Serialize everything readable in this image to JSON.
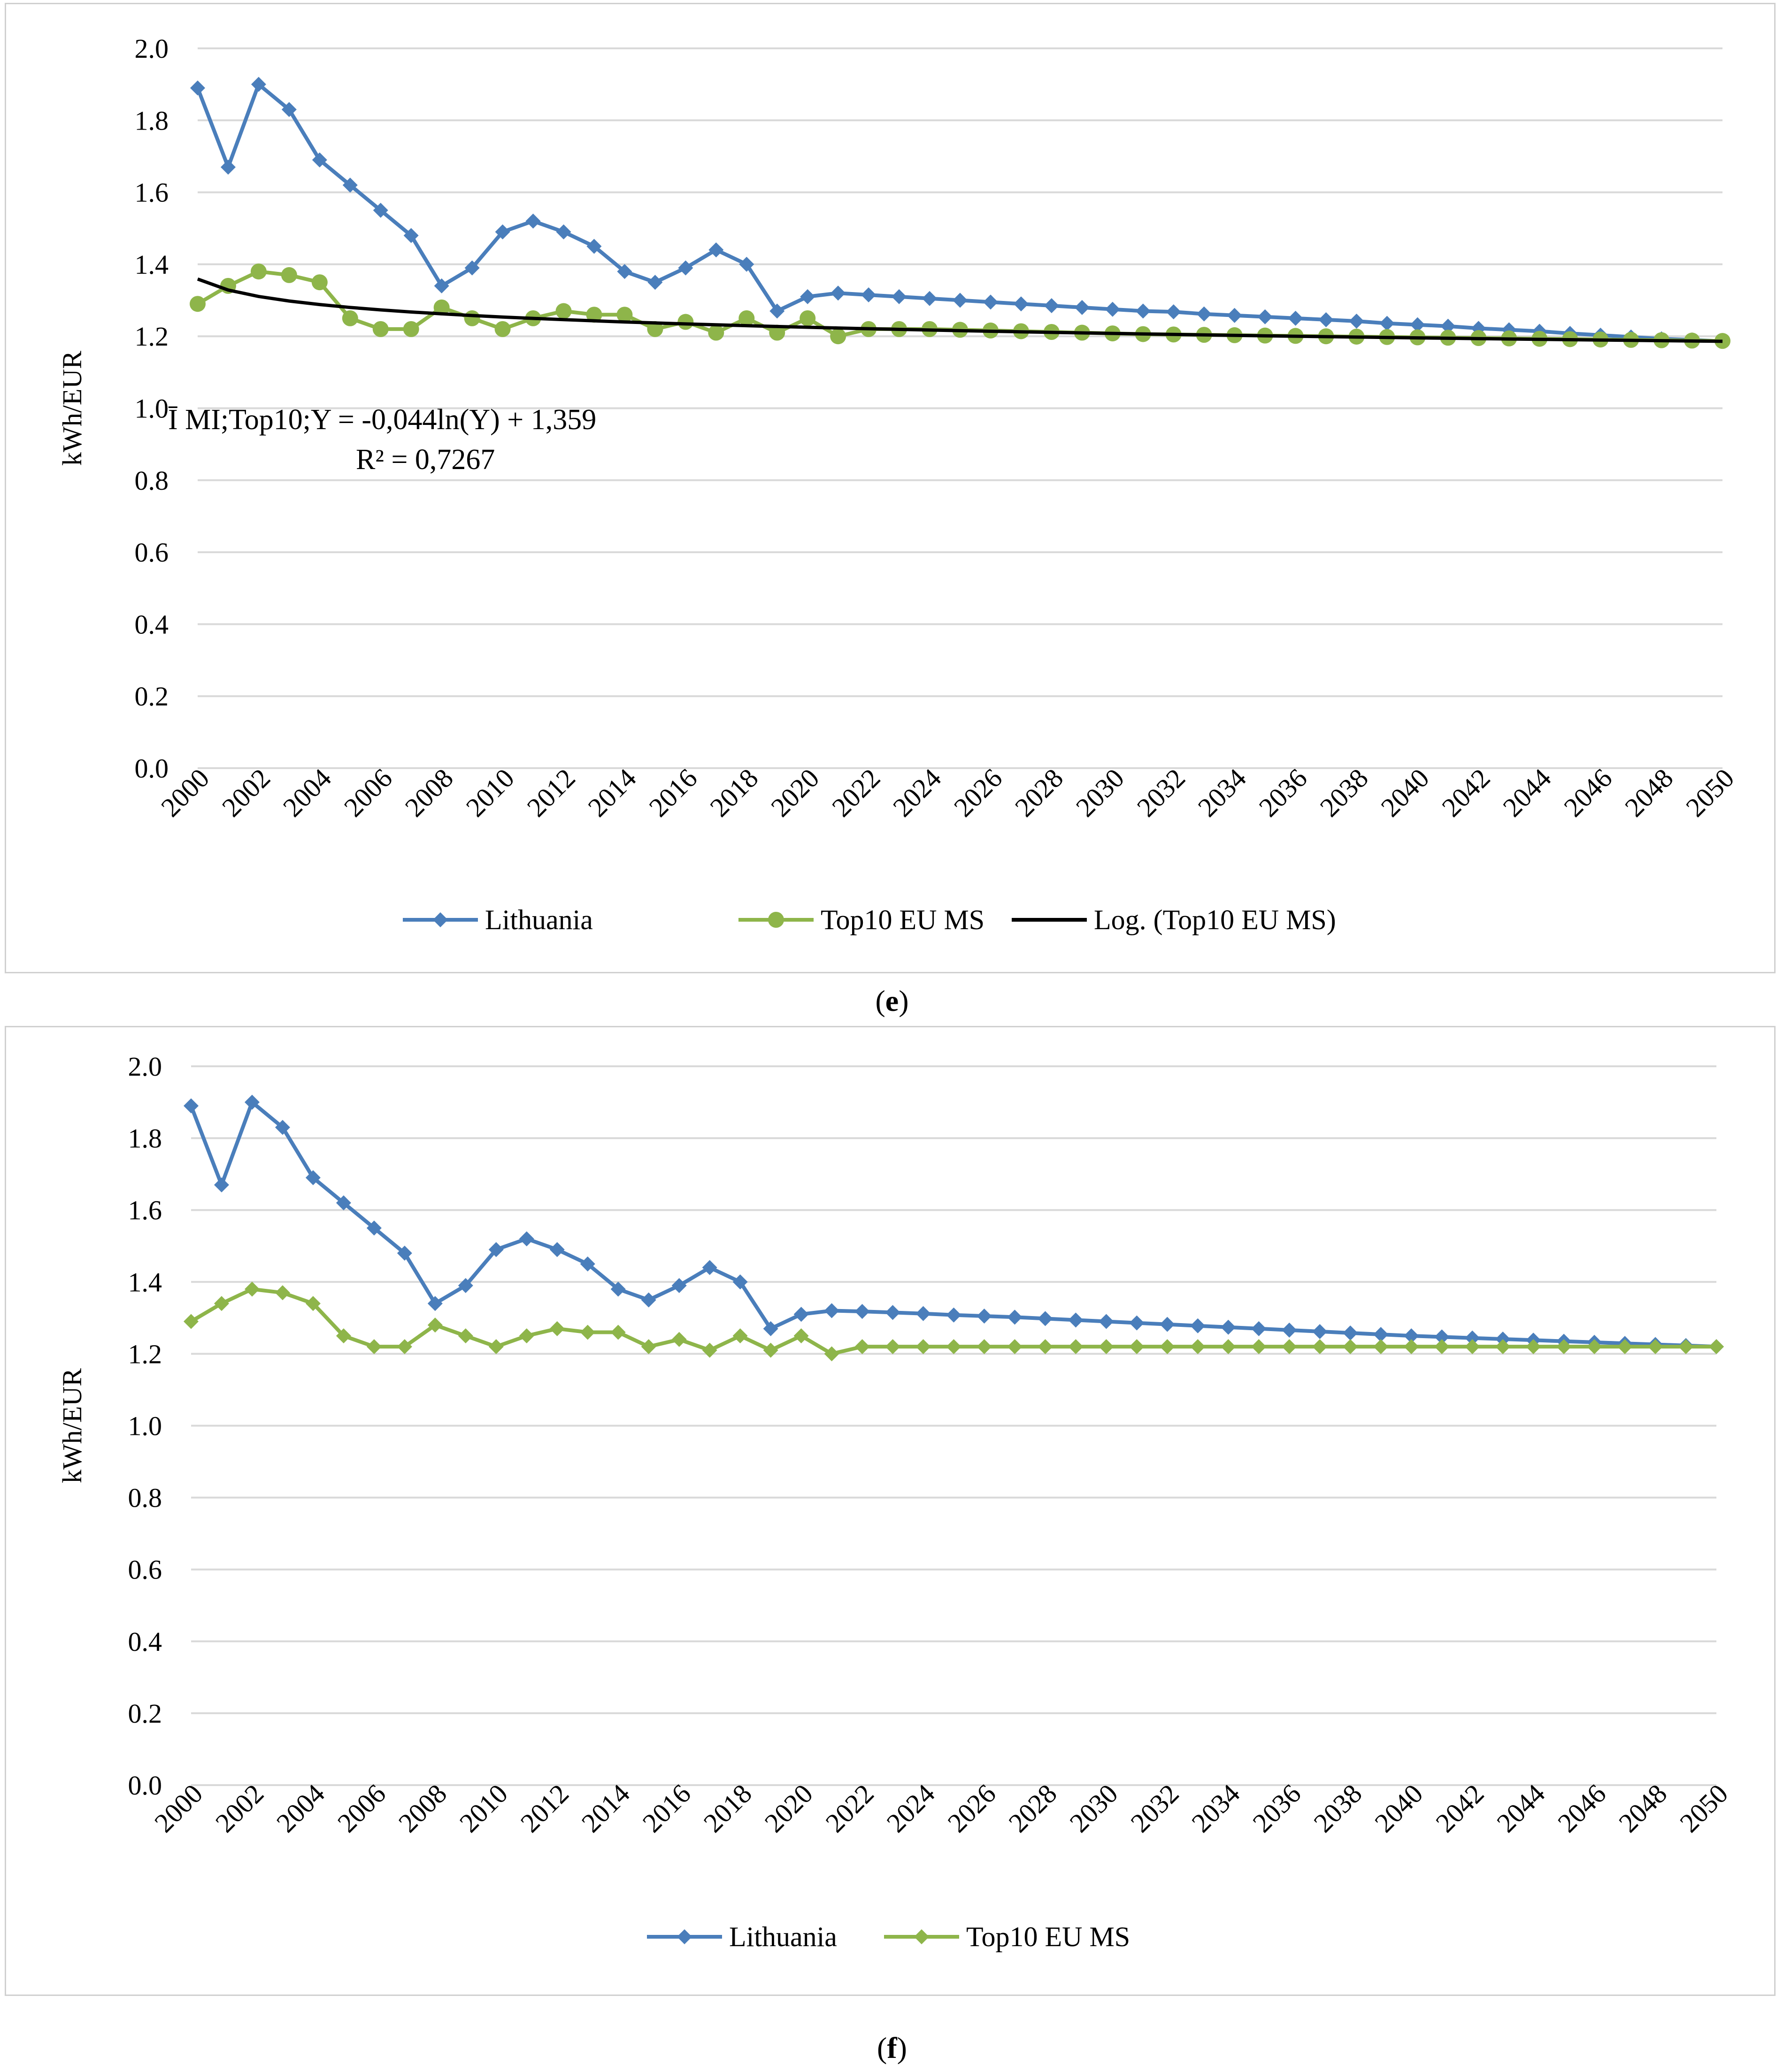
{
  "colors": {
    "lithuania": "#4a7ebb",
    "top10": "#8eb54a",
    "log": "#000000",
    "grid": "#d9d9d9",
    "text": "#000000"
  },
  "charts": [
    {
      "id": "e",
      "caption": "e",
      "ylabel": "kWh/EUR",
      "legend": [
        "Lithuania",
        "Top10 EU MS",
        "Log. (Top10 EU MS)"
      ],
      "equation": "Ī MI;Top10;Y  = -0,044ln(Y) + 1,359",
      "r2": "R² = 0,7267"
    },
    {
      "id": "f",
      "caption": "f",
      "ylabel": "kWh/EUR",
      "legend": [
        "Lithuania",
        "Top10 EU MS"
      ]
    }
  ],
  "chart_data": [
    {
      "type": "line",
      "title": "",
      "xlabel": "",
      "ylabel": "kWh/EUR",
      "ylim": [
        0,
        2
      ],
      "yticks": [
        "0.0",
        "0.2",
        "0.4",
        "0.6",
        "0.8",
        "1.0",
        "1.2",
        "1.4",
        "1.6",
        "1.8",
        "2.0"
      ],
      "x_tick_labels": [
        "2000",
        "2002",
        "2004",
        "2006",
        "2008",
        "2010",
        "2012",
        "2014",
        "2016",
        "2018",
        "2020",
        "2022",
        "2024",
        "2026",
        "2028",
        "2030",
        "2032",
        "2034",
        "2036",
        "2038",
        "2040",
        "2042",
        "2044",
        "2046",
        "2048",
        "2050"
      ],
      "x": [
        2000,
        2001,
        2002,
        2003,
        2004,
        2005,
        2006,
        2007,
        2008,
        2009,
        2010,
        2011,
        2012,
        2013,
        2014,
        2015,
        2016,
        2017,
        2018,
        2019,
        2020,
        2021,
        2022,
        2023,
        2024,
        2025,
        2026,
        2027,
        2028,
        2029,
        2030,
        2031,
        2032,
        2033,
        2034,
        2035,
        2036,
        2037,
        2038,
        2039,
        2040,
        2041,
        2042,
        2043,
        2044,
        2045,
        2046,
        2047,
        2048,
        2049,
        2050
      ],
      "series": [
        {
          "name": "Lithuania",
          "marker": "diamond",
          "values": [
            1.89,
            1.67,
            1.9,
            1.83,
            1.69,
            1.62,
            1.55,
            1.48,
            1.34,
            1.39,
            1.49,
            1.52,
            1.49,
            1.45,
            1.38,
            1.35,
            1.39,
            1.44,
            1.4,
            1.27,
            1.31,
            1.32,
            1.315,
            1.31,
            1.305,
            1.3,
            1.295,
            1.29,
            1.285,
            1.28,
            1.275,
            1.27,
            1.268,
            1.262,
            1.258,
            1.254,
            1.25,
            1.246,
            1.242,
            1.236,
            1.232,
            1.228,
            1.222,
            1.218,
            1.214,
            1.208,
            1.203,
            1.198,
            1.193,
            1.19,
            1.186
          ]
        },
        {
          "name": "Top10 EU MS",
          "marker": "circle",
          "values": [
            1.29,
            1.34,
            1.38,
            1.37,
            1.35,
            1.25,
            1.22,
            1.22,
            1.28,
            1.25,
            1.22,
            1.25,
            1.27,
            1.26,
            1.26,
            1.22,
            1.24,
            1.21,
            1.25,
            1.21,
            1.25,
            1.2,
            1.22,
            1.22,
            1.22,
            1.218,
            1.216,
            1.214,
            1.212,
            1.21,
            1.208,
            1.206,
            1.205,
            1.204,
            1.203,
            1.202,
            1.201,
            1.2,
            1.199,
            1.198,
            1.197,
            1.196,
            1.195,
            1.194,
            1.193,
            1.192,
            1.191,
            1.19,
            1.189,
            1.188,
            1.187
          ]
        },
        {
          "name": "Log. (Top10 EU MS)",
          "trendline": "log",
          "coefficients": {
            "a": -0.044,
            "b": 1.359
          }
        }
      ],
      "legend_position": "bottom"
    },
    {
      "type": "line",
      "title": "",
      "xlabel": "",
      "ylabel": "kWh/EUR",
      "ylim": [
        0,
        2
      ],
      "yticks": [
        "0.0",
        "0.2",
        "0.4",
        "0.6",
        "0.8",
        "1.0",
        "1.2",
        "1.4",
        "1.6",
        "1.8",
        "2.0"
      ],
      "x_tick_labels": [
        "2000",
        "2002",
        "2004",
        "2006",
        "2008",
        "2010",
        "2012",
        "2014",
        "2016",
        "2018",
        "2020",
        "2022",
        "2024",
        "2026",
        "2028",
        "2030",
        "2032",
        "2034",
        "2036",
        "2038",
        "2040",
        "2042",
        "2044",
        "2046",
        "2048",
        "2050"
      ],
      "x": [
        2000,
        2001,
        2002,
        2003,
        2004,
        2005,
        2006,
        2007,
        2008,
        2009,
        2010,
        2011,
        2012,
        2013,
        2014,
        2015,
        2016,
        2017,
        2018,
        2019,
        2020,
        2021,
        2022,
        2023,
        2024,
        2025,
        2026,
        2027,
        2028,
        2029,
        2030,
        2031,
        2032,
        2033,
        2034,
        2035,
        2036,
        2037,
        2038,
        2039,
        2040,
        2041,
        2042,
        2043,
        2044,
        2045,
        2046,
        2047,
        2048,
        2049,
        2050
      ],
      "series": [
        {
          "name": "Lithuania",
          "marker": "diamond",
          "values": [
            1.89,
            1.67,
            1.9,
            1.83,
            1.69,
            1.62,
            1.55,
            1.48,
            1.34,
            1.39,
            1.49,
            1.52,
            1.49,
            1.45,
            1.38,
            1.35,
            1.39,
            1.44,
            1.4,
            1.27,
            1.31,
            1.32,
            1.318,
            1.315,
            1.312,
            1.308,
            1.305,
            1.302,
            1.298,
            1.294,
            1.29,
            1.286,
            1.282,
            1.278,
            1.274,
            1.27,
            1.266,
            1.262,
            1.258,
            1.254,
            1.25,
            1.247,
            1.244,
            1.241,
            1.238,
            1.235,
            1.232,
            1.229,
            1.226,
            1.223,
            1.22
          ]
        },
        {
          "name": "Top10 EU MS",
          "marker": "diamond",
          "values": [
            1.29,
            1.34,
            1.38,
            1.37,
            1.34,
            1.25,
            1.22,
            1.22,
            1.28,
            1.25,
            1.22,
            1.25,
            1.27,
            1.26,
            1.26,
            1.22,
            1.24,
            1.21,
            1.25,
            1.21,
            1.25,
            1.2,
            1.22,
            1.22,
            1.22,
            1.22,
            1.22,
            1.22,
            1.22,
            1.22,
            1.22,
            1.22,
            1.22,
            1.22,
            1.22,
            1.22,
            1.22,
            1.22,
            1.22,
            1.22,
            1.22,
            1.22,
            1.22,
            1.22,
            1.22,
            1.22,
            1.22,
            1.22,
            1.22,
            1.22,
            1.22
          ]
        }
      ],
      "legend_position": "bottom"
    }
  ]
}
